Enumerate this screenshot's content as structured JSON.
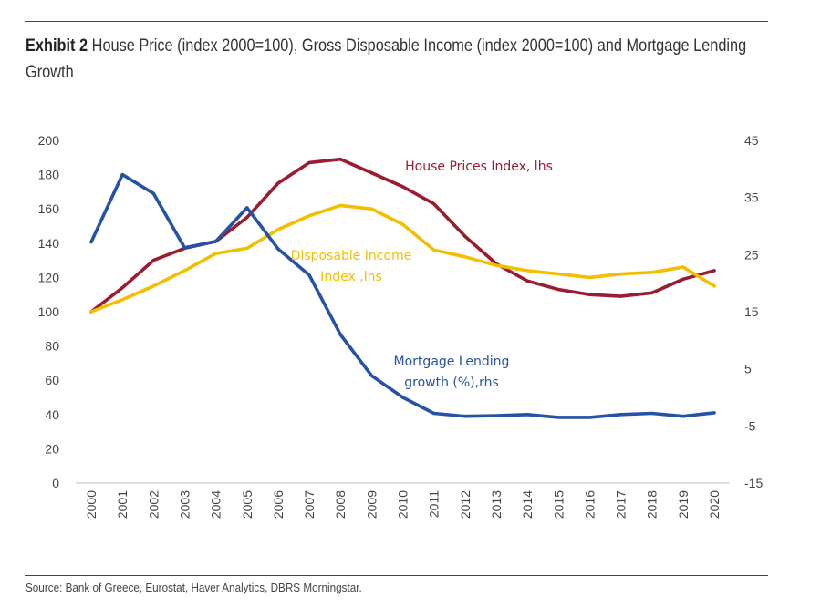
{
  "title": {
    "label": "Exhibit 2",
    "text": "House Price (index 2000=100), Gross Disposable Income (index 2000=100) and Mortgage Lending Growth"
  },
  "source": "Source: Bank of Greece, Eurostat, Haver Analytics, DBRS Morningstar.",
  "chart_data": {
    "type": "line",
    "x": [
      "2000",
      "2001",
      "2002",
      "2003",
      "2004",
      "2005",
      "2006",
      "2007",
      "2008",
      "2009",
      "2010",
      "2011",
      "2012",
      "2013",
      "2014",
      "2015",
      "2016",
      "2017",
      "2018",
      "2019",
      "2020"
    ],
    "y_left": {
      "min": 0,
      "max": 200,
      "ticks": [
        "0",
        "20",
        "40",
        "60",
        "80",
        "100",
        "120",
        "140",
        "160",
        "180",
        "200"
      ]
    },
    "y_right": {
      "min": -15,
      "max": 45,
      "ticks": [
        "-15",
        "-5",
        "5",
        "15",
        "25",
        "35",
        "45"
      ]
    },
    "series": [
      {
        "name": "House Prices Index, lhs",
        "axis": "left",
        "color": "#9b1b30",
        "values": [
          100,
          114,
          130,
          137,
          141,
          155,
          175,
          187,
          189,
          181,
          173,
          163,
          144,
          128,
          118,
          113,
          110,
          109,
          111,
          119,
          124
        ]
      },
      {
        "name": "Disposable Income Index ,lhs",
        "axis": "left",
        "color": "#f2be00",
        "values": [
          100,
          107,
          115,
          124,
          134,
          137,
          148,
          156,
          162,
          160,
          151,
          136,
          132,
          127,
          124,
          122,
          120,
          122,
          123,
          126,
          115
        ]
      },
      {
        "name": "Mortgage Lending growth (%),rhs",
        "axis": "right",
        "color": "#2552a6",
        "values": [
          27.2,
          39.0,
          35.7,
          26.2,
          27.3,
          33.2,
          26.0,
          21.4,
          11.0,
          3.8,
          0.0,
          -2.8,
          -3.3,
          -3.2,
          -3.0,
          -3.5,
          -3.5,
          -3.0,
          -2.8,
          -3.3,
          -2.7
        ]
      }
    ],
    "annotations": [
      {
        "lines": [
          "House Prices Index, lhs"
        ],
        "series": 0
      },
      {
        "lines": [
          "Disposable Income",
          "Index ,lhs"
        ],
        "series": 1
      },
      {
        "lines": [
          "Mortgage Lending",
          "growth (%),rhs"
        ],
        "series": 2
      }
    ]
  }
}
